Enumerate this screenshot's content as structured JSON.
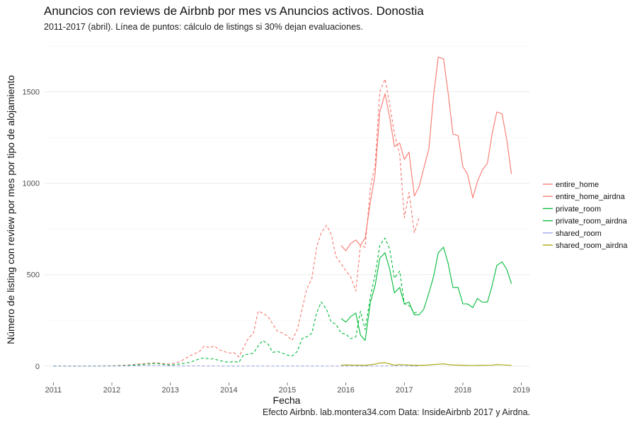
{
  "header": {
    "title": "Anuncios con reviews de Airbnb por mes vs Anuncios activos. Donostia",
    "subtitle": "2011-2017 (abril). Línea de puntos: cálculo de listings si 30% dejan evaluaciones."
  },
  "caption": "Efecto Airbnb. lab.montera34.com Data: InsideAirbnb 2017 y Airdna.",
  "chart_data": {
    "type": "line",
    "title": "Anuncios con reviews de Airbnb por mes vs Anuncios activos. Donostia",
    "subtitle": "2011-2017 (abril). Línea de puntos: cálculo de listings si 30% dejan evaluaciones.",
    "xlabel": "Fecha",
    "ylabel": "Número de listing con review por mes por tipo de alojamiento",
    "x_ticks": [
      "2011",
      "2012",
      "2013",
      "2014",
      "2015",
      "2016",
      "2017",
      "2018",
      "2019"
    ],
    "y_ticks": [
      "0",
      "500",
      "1000",
      "1500"
    ],
    "xlim": [
      2010.85,
      2019.15
    ],
    "ylim": [
      -90,
      1770
    ],
    "grid": true,
    "legend_position": "right",
    "series": [
      {
        "name": "entire_home",
        "color": "#F8766D",
        "dash": "dashed",
        "points": [
          [
            2011.0,
            0
          ],
          [
            2011.5,
            0
          ],
          [
            2012.0,
            2
          ],
          [
            2012.25,
            5
          ],
          [
            2012.5,
            12
          ],
          [
            2012.75,
            18
          ],
          [
            2012.92,
            12
          ],
          [
            2013.0,
            10
          ],
          [
            2013.17,
            25
          ],
          [
            2013.33,
            55
          ],
          [
            2013.5,
            80
          ],
          [
            2013.58,
            110
          ],
          [
            2013.67,
            100
          ],
          [
            2013.75,
            110
          ],
          [
            2013.83,
            90
          ],
          [
            2013.92,
            80
          ],
          [
            2014.0,
            70
          ],
          [
            2014.08,
            75
          ],
          [
            2014.17,
            50
          ],
          [
            2014.25,
            100
          ],
          [
            2014.33,
            150
          ],
          [
            2014.42,
            180
          ],
          [
            2014.5,
            300
          ],
          [
            2014.58,
            290
          ],
          [
            2014.67,
            270
          ],
          [
            2014.75,
            230
          ],
          [
            2014.83,
            190
          ],
          [
            2014.92,
            180
          ],
          [
            2015.0,
            165
          ],
          [
            2015.08,
            140
          ],
          [
            2015.17,
            200
          ],
          [
            2015.25,
            310
          ],
          [
            2015.33,
            420
          ],
          [
            2015.42,
            480
          ],
          [
            2015.5,
            650
          ],
          [
            2015.58,
            730
          ],
          [
            2015.67,
            770
          ],
          [
            2015.75,
            720
          ],
          [
            2015.83,
            600
          ],
          [
            2015.92,
            560
          ],
          [
            2016.0,
            520
          ],
          [
            2016.08,
            490
          ],
          [
            2016.17,
            410
          ],
          [
            2016.25,
            660
          ],
          [
            2016.33,
            650
          ],
          [
            2016.42,
            980
          ],
          [
            2016.5,
            1100
          ],
          [
            2016.58,
            1500
          ],
          [
            2016.67,
            1570
          ],
          [
            2016.75,
            1430
          ],
          [
            2016.83,
            1270
          ],
          [
            2016.92,
            1160
          ],
          [
            2017.0,
            810
          ],
          [
            2017.08,
            950
          ],
          [
            2017.17,
            730
          ],
          [
            2017.25,
            810
          ]
        ]
      },
      {
        "name": "entire_home_airdna",
        "color": "#F8766D",
        "dash": "solid",
        "points": [
          [
            2015.92,
            660
          ],
          [
            2016.0,
            630
          ],
          [
            2016.08,
            670
          ],
          [
            2016.17,
            690
          ],
          [
            2016.25,
            660
          ],
          [
            2016.33,
            700
          ],
          [
            2016.42,
            900
          ],
          [
            2016.5,
            1050
          ],
          [
            2016.58,
            1390
          ],
          [
            2016.67,
            1490
          ],
          [
            2016.75,
            1360
          ],
          [
            2016.83,
            1200
          ],
          [
            2016.92,
            1220
          ],
          [
            2017.0,
            1130
          ],
          [
            2017.08,
            1170
          ],
          [
            2017.17,
            930
          ],
          [
            2017.25,
            980
          ],
          [
            2017.33,
            1080
          ],
          [
            2017.42,
            1190
          ],
          [
            2017.5,
            1480
          ],
          [
            2017.58,
            1690
          ],
          [
            2017.67,
            1680
          ],
          [
            2017.75,
            1490
          ],
          [
            2017.83,
            1270
          ],
          [
            2017.92,
            1260
          ],
          [
            2018.0,
            1090
          ],
          [
            2018.08,
            1050
          ],
          [
            2018.17,
            920
          ],
          [
            2018.25,
            1010
          ],
          [
            2018.33,
            1070
          ],
          [
            2018.42,
            1110
          ],
          [
            2018.5,
            1270
          ],
          [
            2018.58,
            1390
          ],
          [
            2018.67,
            1380
          ],
          [
            2018.75,
            1240
          ],
          [
            2018.83,
            1050
          ]
        ]
      },
      {
        "name": "private_room",
        "color": "#00BA38",
        "dash": "dashed",
        "points": [
          [
            2011.0,
            0
          ],
          [
            2011.5,
            0
          ],
          [
            2012.0,
            1
          ],
          [
            2012.25,
            3
          ],
          [
            2012.5,
            8
          ],
          [
            2012.75,
            15
          ],
          [
            2012.92,
            8
          ],
          [
            2013.0,
            5
          ],
          [
            2013.17,
            12
          ],
          [
            2013.33,
            20
          ],
          [
            2013.5,
            40
          ],
          [
            2013.58,
            45
          ],
          [
            2013.67,
            38
          ],
          [
            2013.75,
            40
          ],
          [
            2013.83,
            30
          ],
          [
            2013.92,
            25
          ],
          [
            2014.0,
            20
          ],
          [
            2014.08,
            25
          ],
          [
            2014.17,
            20
          ],
          [
            2014.25,
            60
          ],
          [
            2014.33,
            65
          ],
          [
            2014.42,
            70
          ],
          [
            2014.5,
            110
          ],
          [
            2014.58,
            140
          ],
          [
            2014.67,
            120
          ],
          [
            2014.75,
            75
          ],
          [
            2014.83,
            80
          ],
          [
            2014.92,
            70
          ],
          [
            2015.0,
            60
          ],
          [
            2015.08,
            55
          ],
          [
            2015.17,
            80
          ],
          [
            2015.25,
            150
          ],
          [
            2015.33,
            160
          ],
          [
            2015.42,
            180
          ],
          [
            2015.5,
            290
          ],
          [
            2015.58,
            350
          ],
          [
            2015.67,
            310
          ],
          [
            2015.75,
            240
          ],
          [
            2015.83,
            230
          ],
          [
            2015.92,
            180
          ],
          [
            2016.0,
            175
          ],
          [
            2016.08,
            150
          ],
          [
            2016.17,
            160
          ],
          [
            2016.25,
            300
          ],
          [
            2016.33,
            200
          ],
          [
            2016.42,
            380
          ],
          [
            2016.5,
            500
          ],
          [
            2016.58,
            660
          ],
          [
            2016.67,
            700
          ],
          [
            2016.75,
            640
          ],
          [
            2016.83,
            480
          ],
          [
            2016.92,
            520
          ],
          [
            2017.0,
            340
          ],
          [
            2017.08,
            330
          ],
          [
            2017.17,
            290
          ],
          [
            2017.25,
            300
          ]
        ]
      },
      {
        "name": "private_room_airdna",
        "color": "#00BA38",
        "dash": "solid",
        "points": [
          [
            2015.92,
            260
          ],
          [
            2016.0,
            240
          ],
          [
            2016.08,
            270
          ],
          [
            2016.17,
            290
          ],
          [
            2016.25,
            170
          ],
          [
            2016.33,
            140
          ],
          [
            2016.42,
            350
          ],
          [
            2016.5,
            440
          ],
          [
            2016.58,
            590
          ],
          [
            2016.67,
            620
          ],
          [
            2016.75,
            530
          ],
          [
            2016.83,
            400
          ],
          [
            2016.92,
            430
          ],
          [
            2017.0,
            340
          ],
          [
            2017.08,
            350
          ],
          [
            2017.17,
            280
          ],
          [
            2017.25,
            280
          ],
          [
            2017.33,
            310
          ],
          [
            2017.42,
            400
          ],
          [
            2017.5,
            490
          ],
          [
            2017.58,
            620
          ],
          [
            2017.67,
            650
          ],
          [
            2017.75,
            560
          ],
          [
            2017.83,
            430
          ],
          [
            2017.92,
            430
          ],
          [
            2018.0,
            340
          ],
          [
            2018.08,
            340
          ],
          [
            2018.17,
            320
          ],
          [
            2018.25,
            370
          ],
          [
            2018.33,
            350
          ],
          [
            2018.42,
            350
          ],
          [
            2018.5,
            440
          ],
          [
            2018.58,
            550
          ],
          [
            2018.67,
            570
          ],
          [
            2018.75,
            530
          ],
          [
            2018.83,
            450
          ]
        ]
      },
      {
        "name": "shared_room",
        "color": "#9AA4E6",
        "dash": "dashed",
        "points": [
          [
            2011.0,
            0
          ],
          [
            2012.0,
            0
          ],
          [
            2012.5,
            2
          ],
          [
            2012.75,
            3
          ],
          [
            2013.0,
            1
          ],
          [
            2014.0,
            0
          ],
          [
            2015.0,
            0
          ],
          [
            2016.0,
            0
          ],
          [
            2016.5,
            0
          ],
          [
            2017.0,
            1
          ],
          [
            2017.25,
            0
          ]
        ]
      },
      {
        "name": "shared_room_airdna",
        "color": "#A3A500",
        "dash": "solid",
        "points": [
          [
            2015.92,
            5
          ],
          [
            2016.0,
            6
          ],
          [
            2016.17,
            5
          ],
          [
            2016.33,
            4
          ],
          [
            2016.5,
            10
          ],
          [
            2016.58,
            17
          ],
          [
            2016.67,
            18
          ],
          [
            2016.75,
            12
          ],
          [
            2016.83,
            5
          ],
          [
            2016.92,
            8
          ],
          [
            2017.0,
            7
          ],
          [
            2017.17,
            4
          ],
          [
            2017.33,
            4
          ],
          [
            2017.5,
            8
          ],
          [
            2017.58,
            10
          ],
          [
            2017.67,
            12
          ],
          [
            2017.75,
            8
          ],
          [
            2017.83,
            6
          ],
          [
            2018.0,
            4
          ],
          [
            2018.17,
            3
          ],
          [
            2018.33,
            4
          ],
          [
            2018.5,
            5
          ],
          [
            2018.58,
            8
          ],
          [
            2018.67,
            7
          ],
          [
            2018.75,
            5
          ],
          [
            2018.83,
            4
          ]
        ]
      }
    ]
  }
}
